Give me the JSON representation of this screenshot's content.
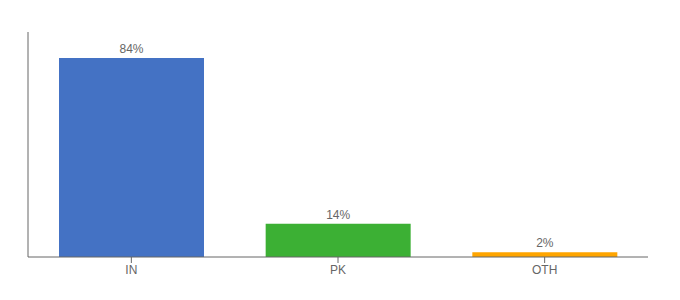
{
  "chart_data": {
    "type": "bar",
    "categories": [
      "IN",
      "PK",
      "OTH"
    ],
    "values": [
      84,
      14,
      2
    ],
    "value_labels": [
      "84%",
      "14%",
      "2%"
    ],
    "colors": [
      "#4472C4",
      "#3CB034",
      "#FFA500"
    ],
    "ylim": [
      0,
      95
    ],
    "data_labels": true,
    "tick_labels": "x",
    "grid": false
  }
}
